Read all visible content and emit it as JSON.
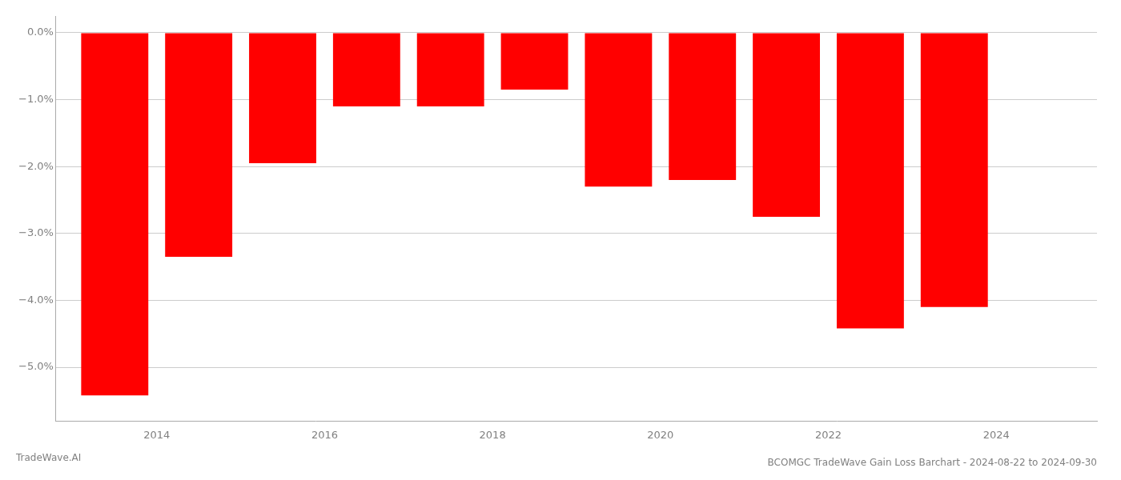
{
  "chart_data": {
    "type": "bar",
    "title": "BCOMGC TradeWave Gain Loss Barchart - 2024-08-22 to 2024-09-30",
    "annotations": [
      "TradeWave.AI"
    ],
    "x": [
      2013.5,
      2014.5,
      2015.5,
      2016.5,
      2017.5,
      2018.5,
      2019.5,
      2020.5,
      2021.5,
      2022.5,
      2023.5
    ],
    "values": [
      -5.42,
      -3.35,
      -1.95,
      -1.1,
      -1.1,
      -0.85,
      -2.3,
      -2.2,
      -2.75,
      -4.42,
      -4.1
    ],
    "color": "#ff0000",
    "xlim": [
      2012.8,
      2025.2
    ],
    "xticks": [
      2014,
      2016,
      2018,
      2020,
      2022,
      2024
    ],
    "ylim": [
      -5.8,
      0.25
    ],
    "yticks": [
      {
        "value": 0.0,
        "label": "0.0%"
      },
      {
        "value": -1.0,
        "label": "−1.0%"
      },
      {
        "value": -2.0,
        "label": "−2.0%"
      },
      {
        "value": -3.0,
        "label": "−3.0%"
      },
      {
        "value": -4.0,
        "label": "−4.0%"
      },
      {
        "value": -5.0,
        "label": "−5.0%"
      }
    ],
    "grid": true
  }
}
